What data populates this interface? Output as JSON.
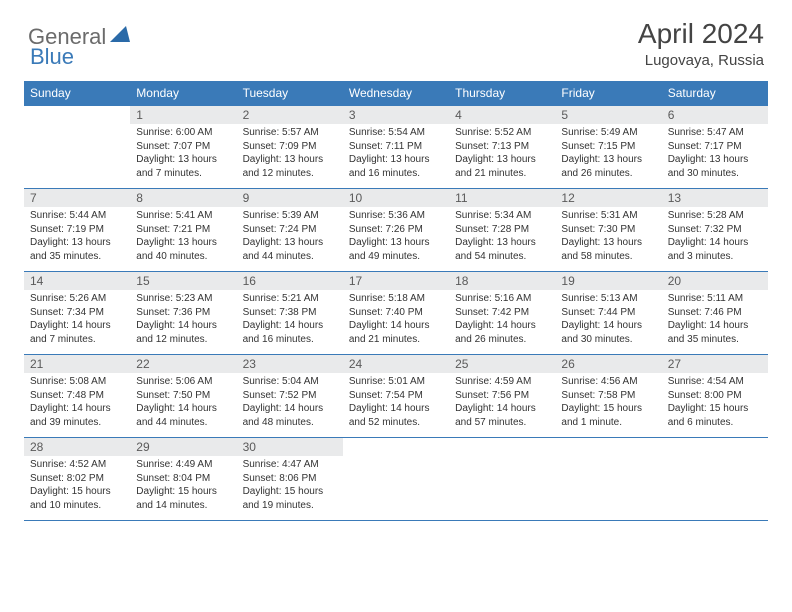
{
  "logo": {
    "general": "General",
    "blue": "Blue"
  },
  "title": "April 2024",
  "location": "Lugovaya, Russia",
  "colors": {
    "header_bg": "#3a7ab8",
    "daynum_bg": "#e9eaeb",
    "border": "#3a7ab8"
  },
  "day_headers": [
    "Sunday",
    "Monday",
    "Tuesday",
    "Wednesday",
    "Thursday",
    "Friday",
    "Saturday"
  ],
  "weeks": [
    [
      null,
      {
        "n": "1",
        "sr": "Sunrise: 6:00 AM",
        "ss": "Sunset: 7:07 PM",
        "dl1": "Daylight: 13 hours",
        "dl2": "and 7 minutes."
      },
      {
        "n": "2",
        "sr": "Sunrise: 5:57 AM",
        "ss": "Sunset: 7:09 PM",
        "dl1": "Daylight: 13 hours",
        "dl2": "and 12 minutes."
      },
      {
        "n": "3",
        "sr": "Sunrise: 5:54 AM",
        "ss": "Sunset: 7:11 PM",
        "dl1": "Daylight: 13 hours",
        "dl2": "and 16 minutes."
      },
      {
        "n": "4",
        "sr": "Sunrise: 5:52 AM",
        "ss": "Sunset: 7:13 PM",
        "dl1": "Daylight: 13 hours",
        "dl2": "and 21 minutes."
      },
      {
        "n": "5",
        "sr": "Sunrise: 5:49 AM",
        "ss": "Sunset: 7:15 PM",
        "dl1": "Daylight: 13 hours",
        "dl2": "and 26 minutes."
      },
      {
        "n": "6",
        "sr": "Sunrise: 5:47 AM",
        "ss": "Sunset: 7:17 PM",
        "dl1": "Daylight: 13 hours",
        "dl2": "and 30 minutes."
      }
    ],
    [
      {
        "n": "7",
        "sr": "Sunrise: 5:44 AM",
        "ss": "Sunset: 7:19 PM",
        "dl1": "Daylight: 13 hours",
        "dl2": "and 35 minutes."
      },
      {
        "n": "8",
        "sr": "Sunrise: 5:41 AM",
        "ss": "Sunset: 7:21 PM",
        "dl1": "Daylight: 13 hours",
        "dl2": "and 40 minutes."
      },
      {
        "n": "9",
        "sr": "Sunrise: 5:39 AM",
        "ss": "Sunset: 7:24 PM",
        "dl1": "Daylight: 13 hours",
        "dl2": "and 44 minutes."
      },
      {
        "n": "10",
        "sr": "Sunrise: 5:36 AM",
        "ss": "Sunset: 7:26 PM",
        "dl1": "Daylight: 13 hours",
        "dl2": "and 49 minutes."
      },
      {
        "n": "11",
        "sr": "Sunrise: 5:34 AM",
        "ss": "Sunset: 7:28 PM",
        "dl1": "Daylight: 13 hours",
        "dl2": "and 54 minutes."
      },
      {
        "n": "12",
        "sr": "Sunrise: 5:31 AM",
        "ss": "Sunset: 7:30 PM",
        "dl1": "Daylight: 13 hours",
        "dl2": "and 58 minutes."
      },
      {
        "n": "13",
        "sr": "Sunrise: 5:28 AM",
        "ss": "Sunset: 7:32 PM",
        "dl1": "Daylight: 14 hours",
        "dl2": "and 3 minutes."
      }
    ],
    [
      {
        "n": "14",
        "sr": "Sunrise: 5:26 AM",
        "ss": "Sunset: 7:34 PM",
        "dl1": "Daylight: 14 hours",
        "dl2": "and 7 minutes."
      },
      {
        "n": "15",
        "sr": "Sunrise: 5:23 AM",
        "ss": "Sunset: 7:36 PM",
        "dl1": "Daylight: 14 hours",
        "dl2": "and 12 minutes."
      },
      {
        "n": "16",
        "sr": "Sunrise: 5:21 AM",
        "ss": "Sunset: 7:38 PM",
        "dl1": "Daylight: 14 hours",
        "dl2": "and 16 minutes."
      },
      {
        "n": "17",
        "sr": "Sunrise: 5:18 AM",
        "ss": "Sunset: 7:40 PM",
        "dl1": "Daylight: 14 hours",
        "dl2": "and 21 minutes."
      },
      {
        "n": "18",
        "sr": "Sunrise: 5:16 AM",
        "ss": "Sunset: 7:42 PM",
        "dl1": "Daylight: 14 hours",
        "dl2": "and 26 minutes."
      },
      {
        "n": "19",
        "sr": "Sunrise: 5:13 AM",
        "ss": "Sunset: 7:44 PM",
        "dl1": "Daylight: 14 hours",
        "dl2": "and 30 minutes."
      },
      {
        "n": "20",
        "sr": "Sunrise: 5:11 AM",
        "ss": "Sunset: 7:46 PM",
        "dl1": "Daylight: 14 hours",
        "dl2": "and 35 minutes."
      }
    ],
    [
      {
        "n": "21",
        "sr": "Sunrise: 5:08 AM",
        "ss": "Sunset: 7:48 PM",
        "dl1": "Daylight: 14 hours",
        "dl2": "and 39 minutes."
      },
      {
        "n": "22",
        "sr": "Sunrise: 5:06 AM",
        "ss": "Sunset: 7:50 PM",
        "dl1": "Daylight: 14 hours",
        "dl2": "and 44 minutes."
      },
      {
        "n": "23",
        "sr": "Sunrise: 5:04 AM",
        "ss": "Sunset: 7:52 PM",
        "dl1": "Daylight: 14 hours",
        "dl2": "and 48 minutes."
      },
      {
        "n": "24",
        "sr": "Sunrise: 5:01 AM",
        "ss": "Sunset: 7:54 PM",
        "dl1": "Daylight: 14 hours",
        "dl2": "and 52 minutes."
      },
      {
        "n": "25",
        "sr": "Sunrise: 4:59 AM",
        "ss": "Sunset: 7:56 PM",
        "dl1": "Daylight: 14 hours",
        "dl2": "and 57 minutes."
      },
      {
        "n": "26",
        "sr": "Sunrise: 4:56 AM",
        "ss": "Sunset: 7:58 PM",
        "dl1": "Daylight: 15 hours",
        "dl2": "and 1 minute."
      },
      {
        "n": "27",
        "sr": "Sunrise: 4:54 AM",
        "ss": "Sunset: 8:00 PM",
        "dl1": "Daylight: 15 hours",
        "dl2": "and 6 minutes."
      }
    ],
    [
      {
        "n": "28",
        "sr": "Sunrise: 4:52 AM",
        "ss": "Sunset: 8:02 PM",
        "dl1": "Daylight: 15 hours",
        "dl2": "and 10 minutes."
      },
      {
        "n": "29",
        "sr": "Sunrise: 4:49 AM",
        "ss": "Sunset: 8:04 PM",
        "dl1": "Daylight: 15 hours",
        "dl2": "and 14 minutes."
      },
      {
        "n": "30",
        "sr": "Sunrise: 4:47 AM",
        "ss": "Sunset: 8:06 PM",
        "dl1": "Daylight: 15 hours",
        "dl2": "and 19 minutes."
      },
      null,
      null,
      null,
      null
    ]
  ]
}
